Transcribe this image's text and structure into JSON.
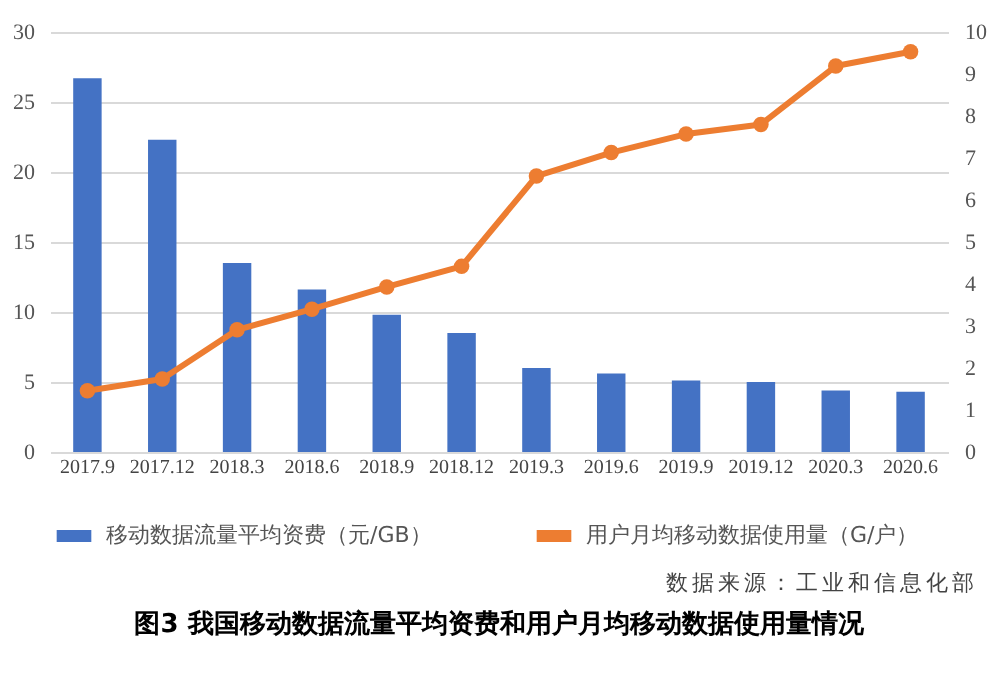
{
  "chart_data": {
    "type": "bar",
    "title": "图3 我国移动数据流量平均资费和用户月均移动数据使用量情况",
    "annotations": [
      "数据来源：工业和信息化部"
    ],
    "categories": [
      "2017.9",
      "2017.12",
      "2018.3",
      "2018.6",
      "2018.9",
      "2018.12",
      "2019.3",
      "2019.6",
      "2019.9",
      "2019.12",
      "2020.3",
      "2020.6"
    ],
    "series": [
      {
        "name": "移动数据流量平均资费（元/GB）",
        "color": "#4472c4",
        "values": [
          26.7,
          22.3,
          13.5,
          11.6,
          9.8,
          8.5,
          6.0,
          5.6,
          5.1,
          5.0,
          4.4,
          4.3
        ]
      },
      {
        "name": "用户月均移动数据使用量（G/户）",
        "type": "line",
        "axis": "y2",
        "color": "#ed7d31",
        "values": [
          1.46,
          1.74,
          2.91,
          3.4,
          3.93,
          4.42,
          6.57,
          7.13,
          7.57,
          7.8,
          9.19,
          9.53
        ]
      }
    ],
    "ylim": [
      0,
      30
    ],
    "yticks": [
      0,
      5,
      10,
      15,
      20,
      25,
      30
    ],
    "y2lim": [
      0,
      10
    ],
    "y2ticks": [
      0,
      1,
      2,
      3,
      4,
      5,
      6,
      7,
      8,
      9,
      10
    ],
    "grid": "y",
    "legend": "bottom",
    "marker": "circle"
  }
}
